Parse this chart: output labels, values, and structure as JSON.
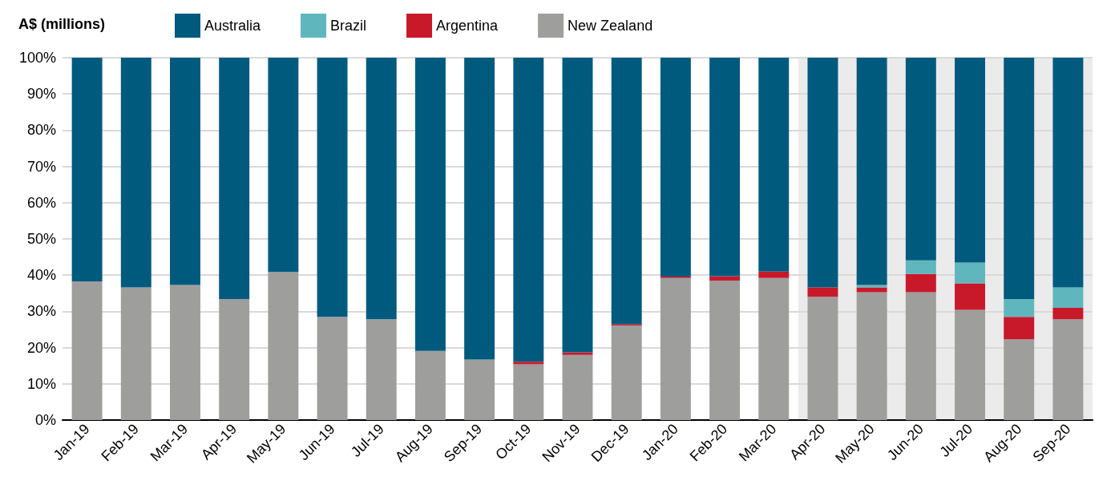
{
  "chart_data": {
    "type": "bar",
    "ylabel": "A$ (millions)",
    "stacked": true,
    "legend": "top",
    "grid": "y",
    "categories": [
      "Jan-19",
      "Feb-19",
      "Mar-19",
      "Apr-19",
      "May-19",
      "Jun-19",
      "Jul-19",
      "Aug-19",
      "Sep-19",
      "Oct-19",
      "Nov-19",
      "Dec-19",
      "Jan-20",
      "Feb-20",
      "Mar-20",
      "Apr-20",
      "May-20",
      "Jun-20",
      "Jul-20",
      "Aug-20",
      "Sep-20"
    ],
    "series": [
      {
        "name": "New Zealand",
        "color": "#9e9e9c",
        "values": [
          38.3,
          36.6,
          37.3,
          33.4,
          40.9,
          28.5,
          27.8,
          19.1,
          16.7,
          15.4,
          18.0,
          26.1,
          39.2,
          38.5,
          39.2,
          34.0,
          35.3,
          35.3,
          30.4,
          22.3,
          27.8
        ]
      },
      {
        "name": "Argentina",
        "color": "#c8192b",
        "values": [
          0,
          0,
          0,
          0,
          0,
          0,
          0,
          0,
          0,
          0.7,
          0.7,
          0.4,
          0.4,
          1.2,
          1.8,
          2.6,
          1.3,
          5.0,
          7.3,
          6.2,
          3.2
        ]
      },
      {
        "name": "Brazil",
        "color": "#5fb7bd",
        "values": [
          0,
          0,
          0,
          0,
          0,
          0,
          0,
          0,
          0,
          0,
          0,
          0,
          0,
          0,
          0,
          0,
          0.7,
          3.8,
          5.8,
          4.9,
          5.6
        ]
      },
      {
        "name": "Australia",
        "color": "#005a7e",
        "values": [
          61.7,
          63.4,
          62.7,
          66.6,
          59.1,
          71.5,
          72.2,
          80.9,
          83.3,
          83.9,
          81.3,
          73.5,
          60.4,
          60.3,
          59.0,
          63.4,
          62.7,
          55.9,
          56.5,
          66.6,
          63.4
        ]
      }
    ],
    "ylim": [
      0,
      100
    ],
    "yticks": [
      {
        "value": 0,
        "label": "0%"
      },
      {
        "value": 10,
        "label": "10%"
      },
      {
        "value": 20,
        "label": "20%"
      },
      {
        "value": 30,
        "label": "30%"
      },
      {
        "value": 40,
        "label": "40%"
      },
      {
        "value": 50,
        "label": "50%"
      },
      {
        "value": 60,
        "label": "60%"
      },
      {
        "value": 70,
        "label": "70%"
      },
      {
        "value": 80,
        "label": "80%"
      },
      {
        "value": 90,
        "label": "90%"
      },
      {
        "value": 100,
        "label": "100%"
      }
    ],
    "bands": [
      {
        "axis": "x",
        "from": "Apr-20",
        "to": "Sep-20",
        "color": "#ebebeb"
      }
    ]
  }
}
